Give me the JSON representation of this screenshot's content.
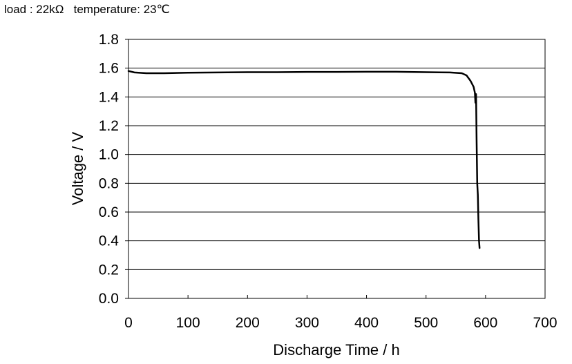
{
  "conditions": {
    "load": "load : 22kΩ",
    "temperature": "temperature: 23℃"
  },
  "chart_data": {
    "type": "line",
    "title": "",
    "xlabel": "Discharge Time / h",
    "ylabel": "Voltage / V",
    "xlim": [
      0,
      700
    ],
    "ylim": [
      0.0,
      1.8
    ],
    "x_ticks": [
      "0",
      "100",
      "200",
      "300",
      "400",
      "500",
      "600",
      "700"
    ],
    "y_ticks": [
      "0.0",
      "0.2",
      "0.4",
      "0.6",
      "0.8",
      "1.0",
      "1.2",
      "1.4",
      "1.6",
      "1.8"
    ],
    "grid": "horizontal",
    "legend": "none",
    "series": [
      {
        "color": "#000000",
        "x": [
          0,
          10,
          30,
          60,
          100,
          150,
          200,
          250,
          300,
          350,
          400,
          450,
          500,
          540,
          560,
          568,
          575,
          580,
          582,
          583,
          584,
          585,
          586,
          587,
          588,
          589,
          590
        ],
        "y": [
          1.58,
          1.57,
          1.565,
          1.565,
          1.568,
          1.57,
          1.572,
          1.572,
          1.574,
          1.574,
          1.575,
          1.575,
          1.572,
          1.57,
          1.565,
          1.55,
          1.51,
          1.47,
          1.43,
          1.36,
          1.42,
          1.1,
          0.8,
          0.72,
          0.55,
          0.4,
          0.35
        ]
      }
    ]
  }
}
